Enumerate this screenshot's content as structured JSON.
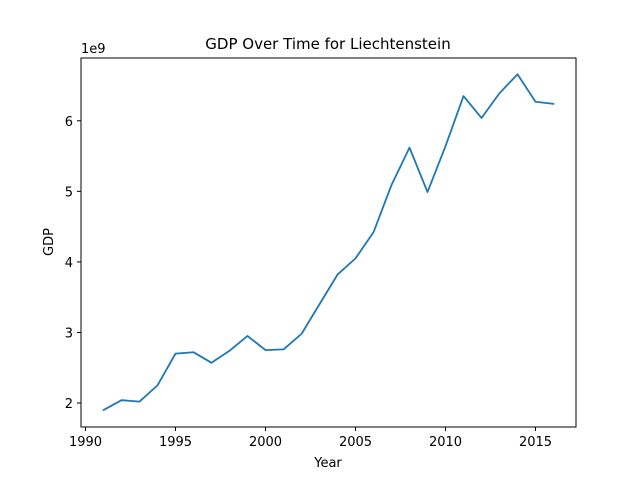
{
  "chart_data": {
    "type": "line",
    "title": "GDP Over Time for Liechtenstein",
    "xlabel": "Year",
    "ylabel": "GDP",
    "y_scale_label": "1e9",
    "y_scale_factor": 1000000000,
    "xlim": [
      1989.75,
      2017.25
    ],
    "ylim": [
      1.66,
      6.89
    ],
    "x_ticks": [
      1990,
      1995,
      2000,
      2005,
      2010,
      2015
    ],
    "y_ticks": [
      2,
      3,
      4,
      5,
      6
    ],
    "grid": false,
    "legend": "none",
    "line_color": "#1f77b4",
    "x": [
      1991,
      1992,
      1993,
      1994,
      1995,
      1996,
      1997,
      1998,
      1999,
      2000,
      2001,
      2002,
      2003,
      2004,
      2005,
      2006,
      2007,
      2008,
      2009,
      2010,
      2011,
      2012,
      2013,
      2014,
      2015,
      2016
    ],
    "series": [
      {
        "values": [
          1.9,
          2.04,
          2.02,
          2.25,
          2.7,
          2.72,
          2.57,
          2.74,
          2.95,
          2.75,
          2.76,
          2.98,
          3.4,
          3.82,
          4.05,
          4.42,
          5.09,
          5.62,
          4.99,
          5.64,
          6.35,
          6.04,
          6.39,
          6.66,
          6.27,
          6.24
        ]
      }
    ]
  }
}
